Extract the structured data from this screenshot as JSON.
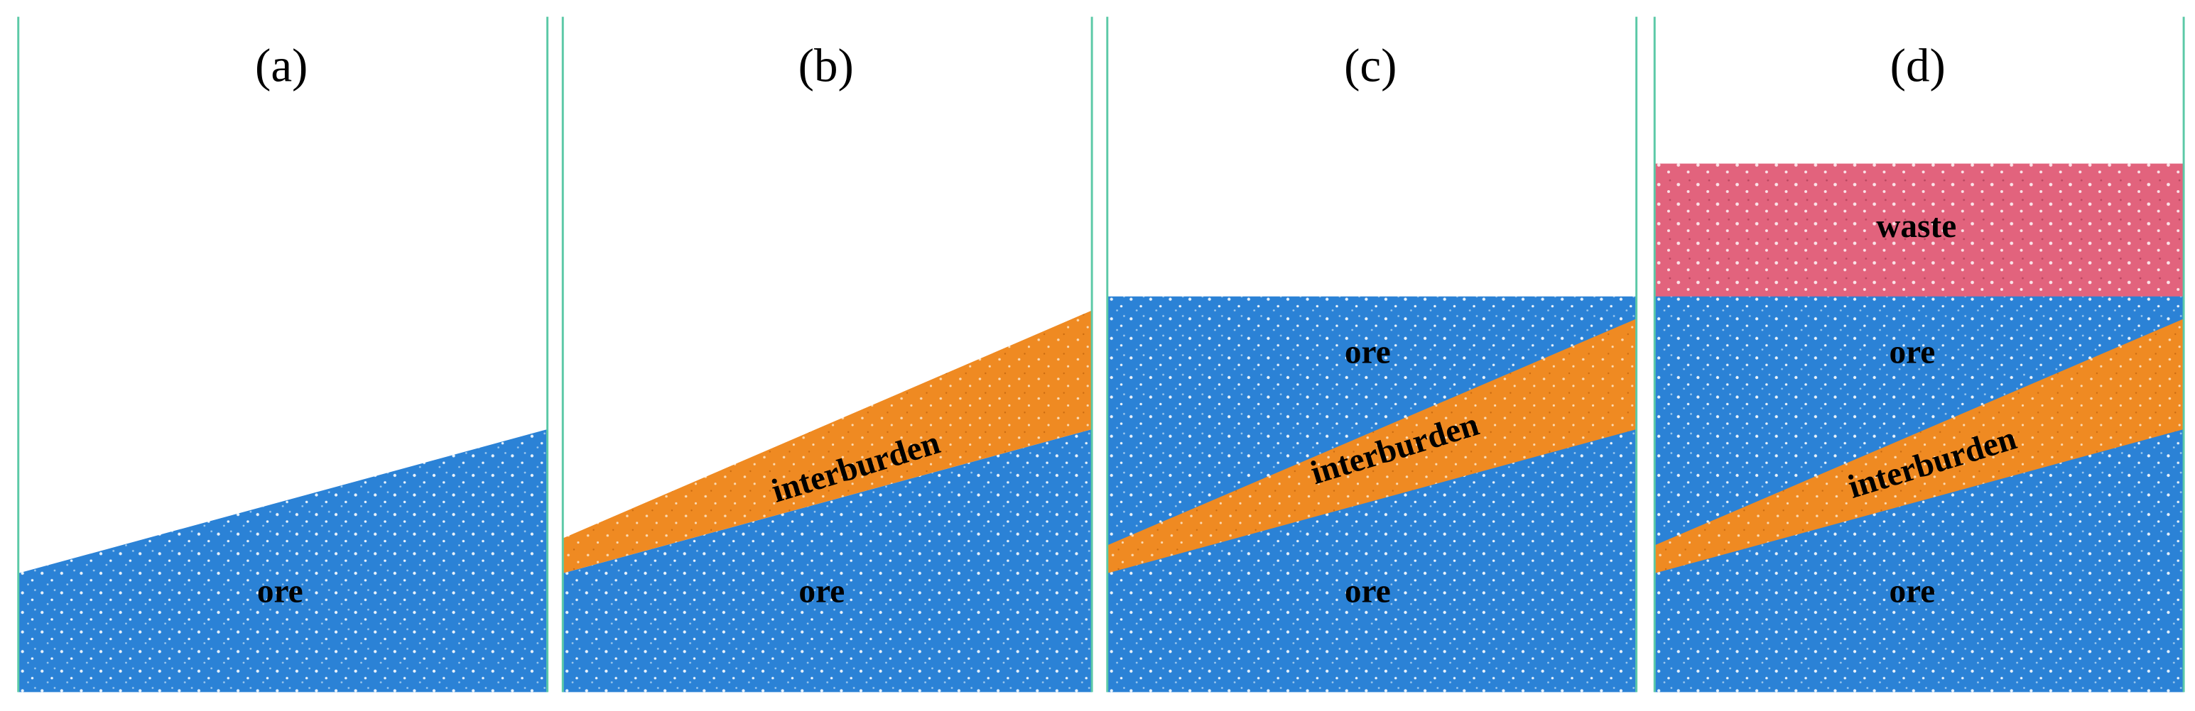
{
  "panels": [
    {
      "label": "(a)",
      "regions": [
        "ore"
      ]
    },
    {
      "label": "(b)",
      "regions": [
        "interburden",
        "ore"
      ]
    },
    {
      "label": "(c)",
      "regions": [
        "ore",
        "interburden",
        "ore"
      ]
    },
    {
      "label": "(d)",
      "regions": [
        "waste",
        "ore",
        "interburden",
        "ore"
      ]
    }
  ]
}
